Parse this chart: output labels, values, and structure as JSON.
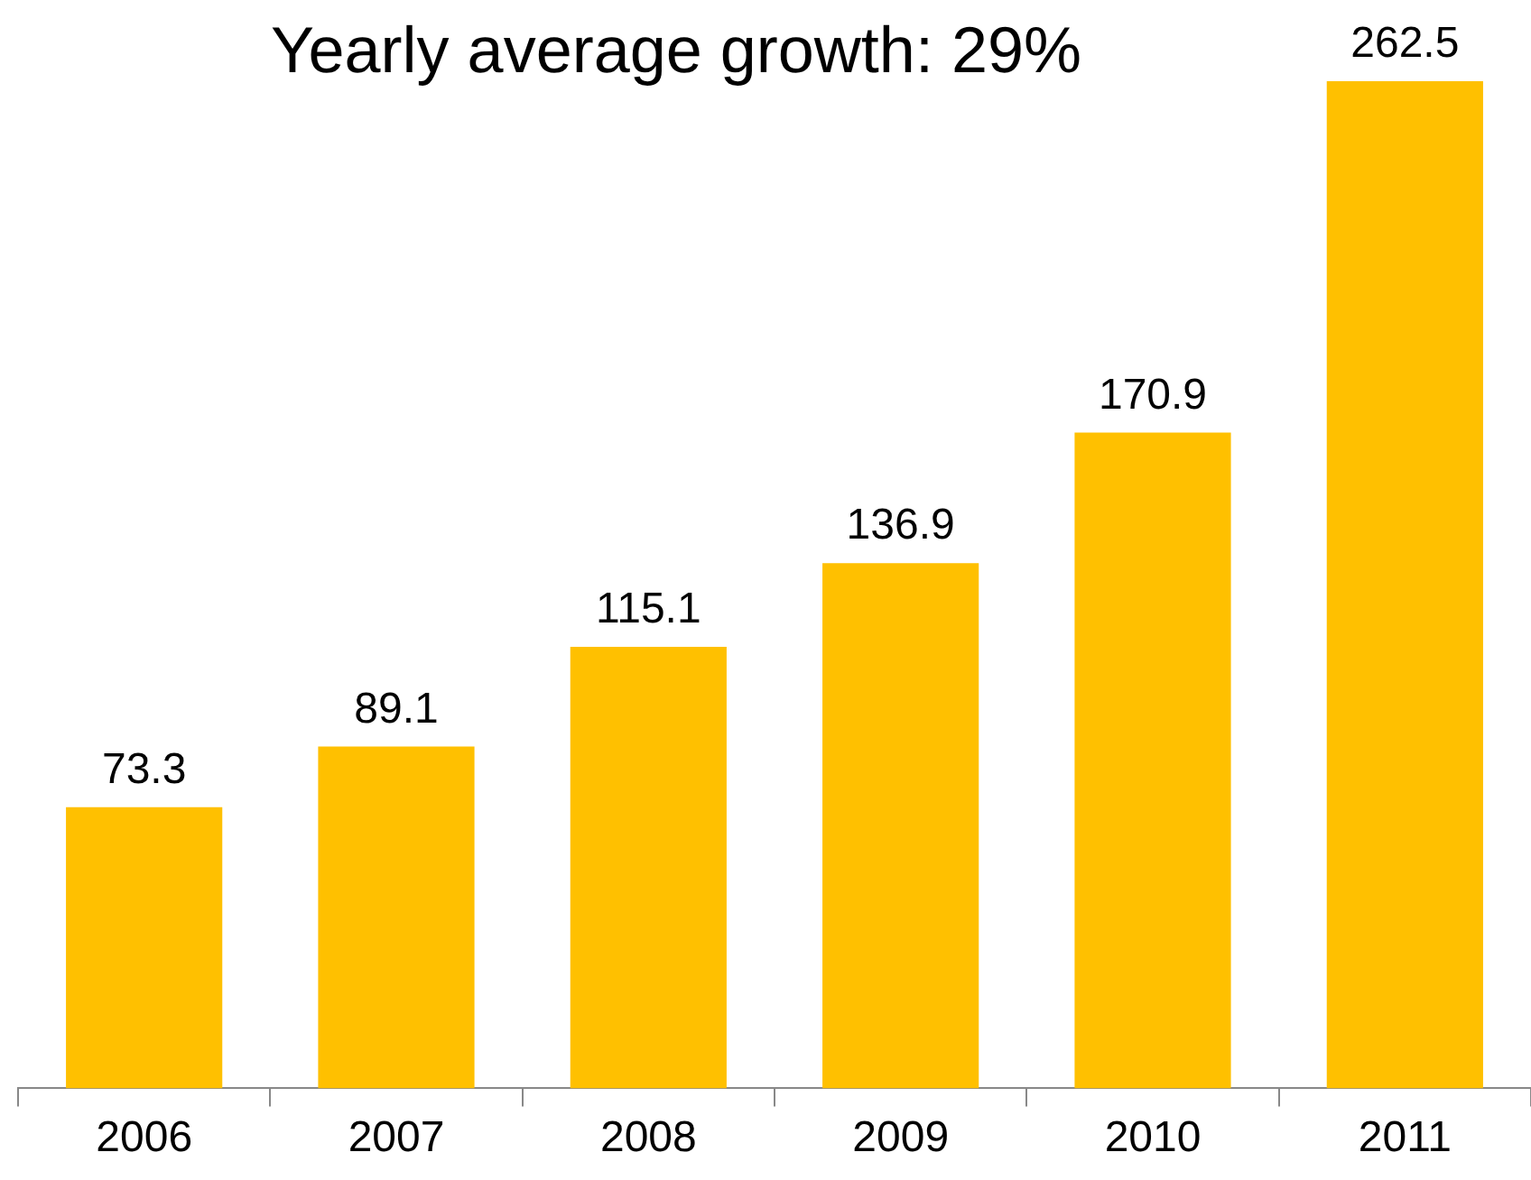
{
  "chart_data": {
    "type": "bar",
    "title": "Yearly average growth: 29%",
    "categories": [
      "2006",
      "2007",
      "2008",
      "2009",
      "2010",
      "2011"
    ],
    "values": [
      73.3,
      89.1,
      115.1,
      136.9,
      170.9,
      262.5
    ],
    "color": "#ffc000",
    "tick_labels": "x",
    "data_labels": true,
    "grid": false,
    "legend": false
  }
}
